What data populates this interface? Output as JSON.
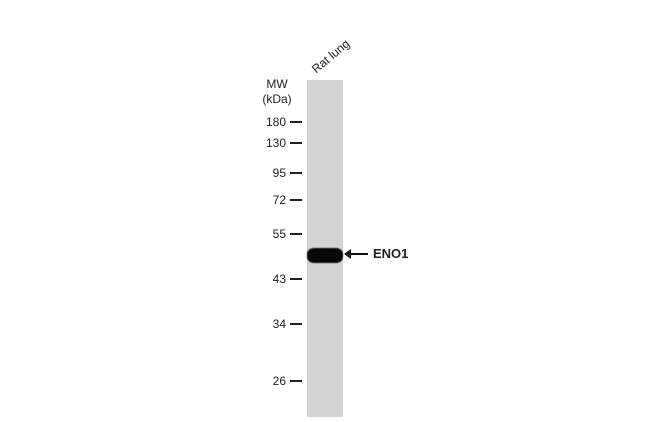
{
  "lane_label": "Rat lung",
  "mw_label_line1": "MW",
  "mw_label_line2": "(kDa)",
  "markers": [
    {
      "label": "180",
      "kda": 180
    },
    {
      "label": "130",
      "kda": 130
    },
    {
      "label": "95",
      "kda": 95
    },
    {
      "label": "72",
      "kda": 72
    },
    {
      "label": "55",
      "kda": 55
    },
    {
      "label": "43",
      "kda": 43
    },
    {
      "label": "34",
      "kda": 34
    },
    {
      "label": "26",
      "kda": 26
    }
  ],
  "target_label": "ENO1",
  "colors": {
    "lane": "#d4d4d4",
    "band": "#080808"
  }
}
